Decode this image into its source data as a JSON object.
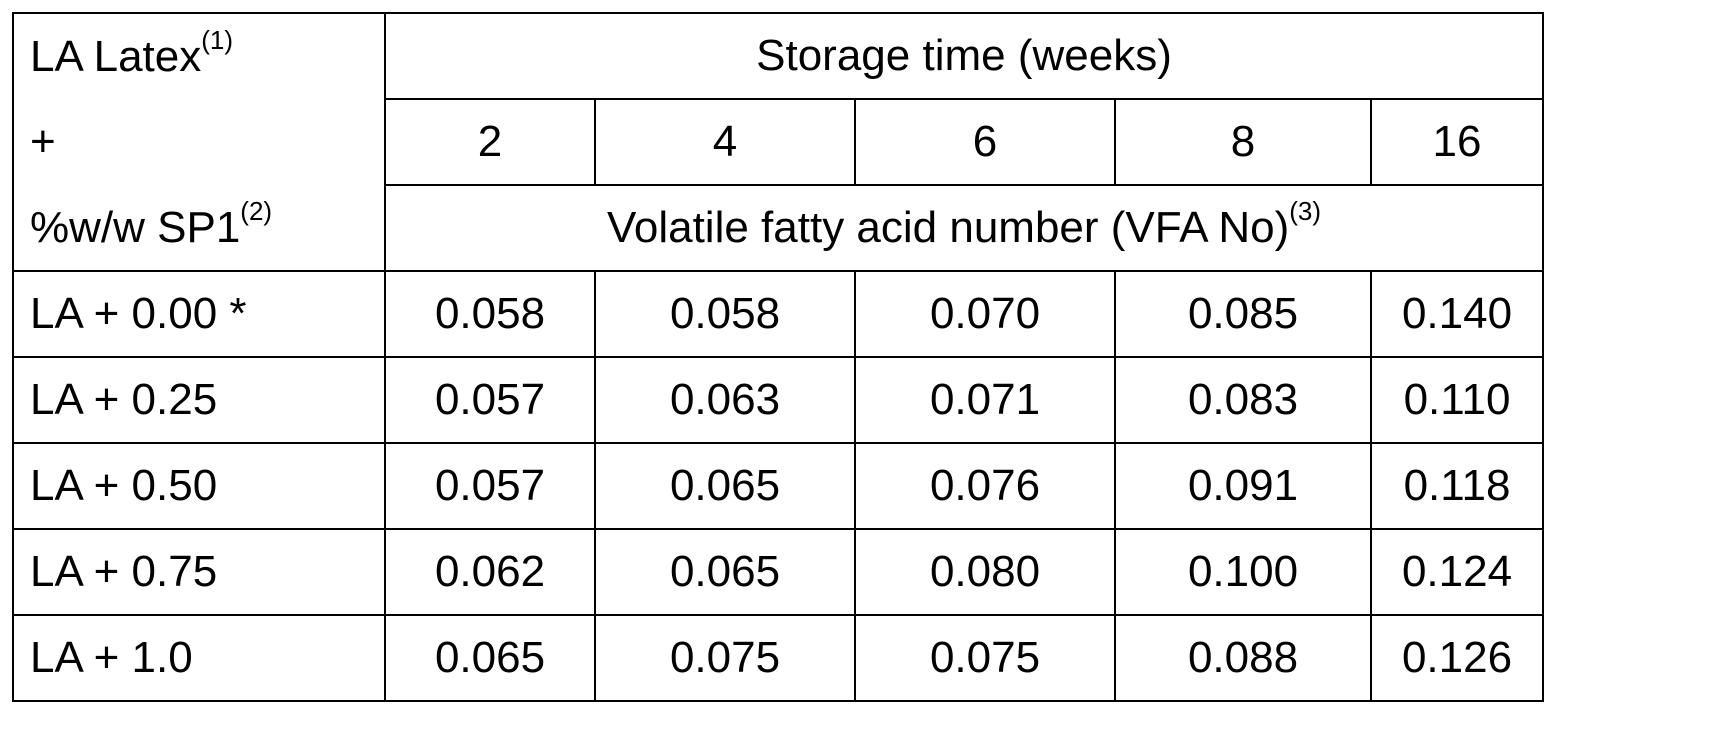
{
  "header": {
    "corner_line1": "LA Latex",
    "corner_line1_sup": "(1)",
    "corner_line2": "+",
    "corner_line3": "%w/w SP1",
    "corner_line3_sup": "(2)",
    "storage_time": "Storage time (weeks)",
    "weeks": [
      "2",
      "4",
      "6",
      "8",
      "16"
    ],
    "vfa_label": "Volatile fatty acid number (VFA No)",
    "vfa_sup": "(3)"
  },
  "rows": [
    {
      "label": "LA + 0.00 *",
      "values": [
        "0.058",
        "0.058",
        "0.070",
        "0.085",
        "0.140"
      ]
    },
    {
      "label": "LA + 0.25",
      "values": [
        "0.057",
        "0.063",
        "0.071",
        "0.083",
        "0.110"
      ]
    },
    {
      "label": "LA + 0.50",
      "values": [
        "0.057",
        "0.065",
        "0.076",
        "0.091",
        "0.118"
      ]
    },
    {
      "label": "LA + 0.75",
      "values": [
        "0.062",
        "0.065",
        "0.080",
        "0.100",
        "0.124"
      ]
    },
    {
      "label": "LA + 1.0",
      "values": [
        "0.065",
        "0.075",
        "0.075",
        "0.088",
        "0.126"
      ]
    }
  ]
}
